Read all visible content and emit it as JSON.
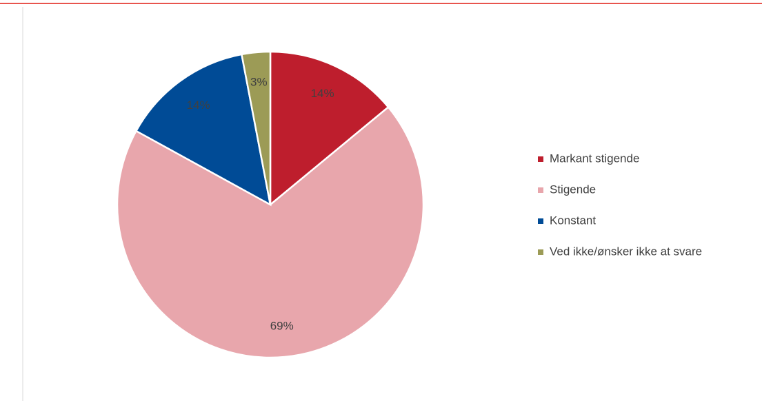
{
  "chart_data": {
    "type": "pie",
    "categories": [
      "Markant stigende",
      "Stigende",
      "Konstant",
      "Ved ikke/ønsker ikke at svare"
    ],
    "values": [
      14,
      69,
      14,
      3
    ],
    "value_labels": [
      "14%",
      "69%",
      "14%",
      "3%"
    ],
    "colors": [
      "#be1e2d",
      "#e8a6ac",
      "#004b96",
      "#9c9b56"
    ],
    "legend": "right"
  }
}
